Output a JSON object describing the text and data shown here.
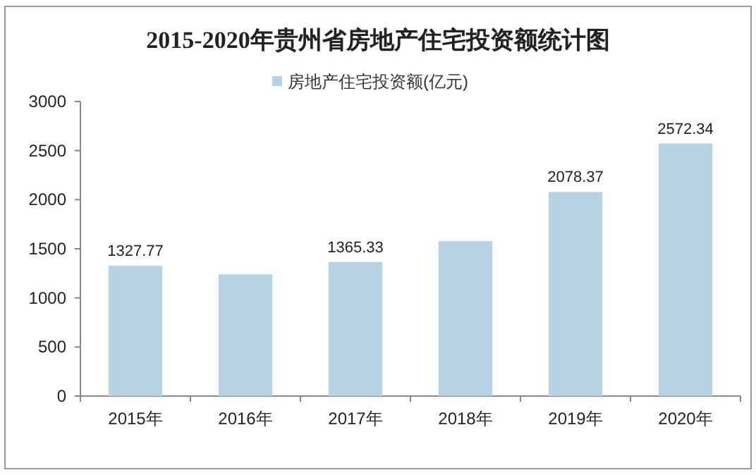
{
  "chart_data": {
    "type": "bar",
    "title": "2015-2020年贵州省房地产住宅投资额统计图",
    "categories": [
      "2015年",
      "2016年",
      "2017年",
      "2018年",
      "2019年",
      "2020年"
    ],
    "series": [
      {
        "name": "房地产住宅投资额(亿元)",
        "color": "#b7d3e3",
        "values": [
          1327.77,
          1240,
          1365.33,
          1577.8,
          2078.37,
          2572.34
        ]
      }
    ],
    "value_labels": [
      "1327.77",
      null,
      "1365.33",
      null,
      "2078.37",
      "2572.34"
    ],
    "ylim": [
      0,
      3000
    ],
    "yticks": [
      0,
      500,
      1000,
      1500,
      2000,
      2500,
      3000
    ],
    "legend": "top",
    "grid": false
  }
}
